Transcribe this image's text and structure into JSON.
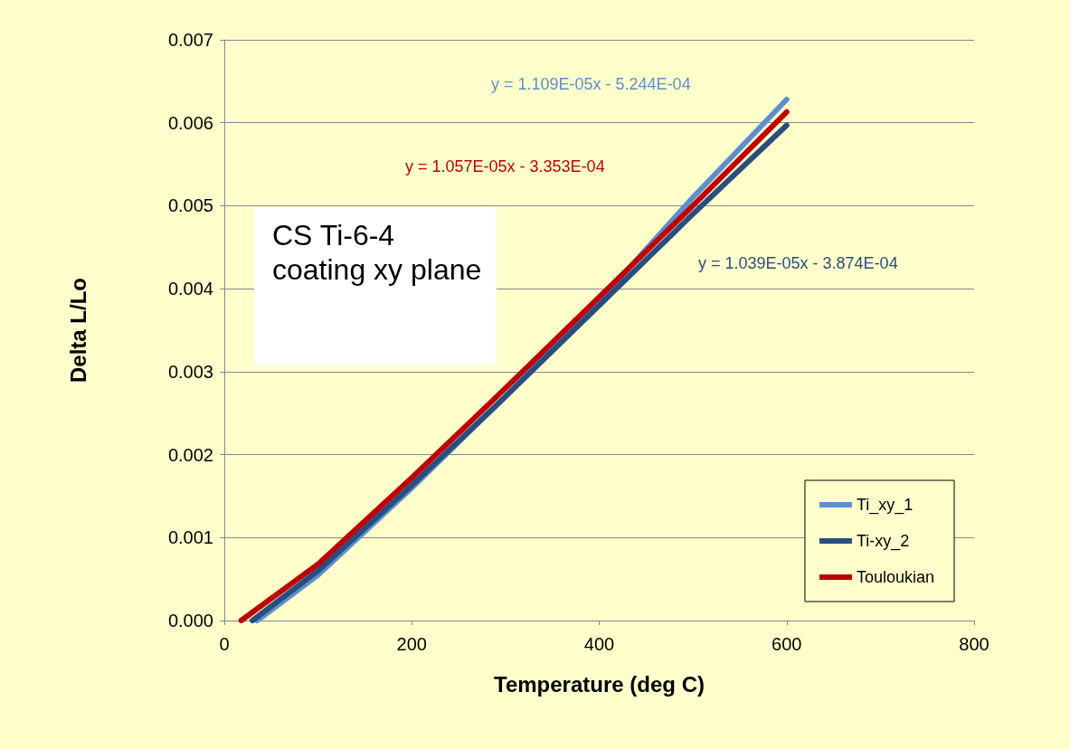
{
  "chart_data": {
    "type": "line",
    "xlabel": "Temperature (deg C)",
    "ylabel": "Delta L/Lo",
    "xlim": [
      0,
      800
    ],
    "xticks": [
      0,
      200,
      400,
      600,
      800
    ],
    "ylim": [
      0,
      0.007
    ],
    "yticks": [
      {
        "value": 0,
        "label": "0.000"
      },
      0.001,
      0.002,
      0.003,
      0.004,
      0.005,
      0.006,
      0.007
    ],
    "grid": "y",
    "legend": "bottom right",
    "marker": "none",
    "line_style": "solid",
    "series": [
      {
        "name": "Ti_xy_1",
        "color": "#5b8fcf",
        "x": [
          35,
          100,
          200,
          300,
          400,
          500,
          600
        ],
        "values": [
          0,
          0.00055,
          0.0016,
          0.0027,
          0.00385,
          0.0051,
          0.00628
        ]
      },
      {
        "name": "Ti-xy_2",
        "color": "#2a4d7f",
        "x": [
          30,
          100,
          200,
          300,
          400,
          500,
          600
        ],
        "values": [
          0,
          0.0006,
          0.00163,
          0.0027,
          0.0038,
          0.0049,
          0.00597
        ]
      },
      {
        "name": "Touloukian",
        "color": "#c00000",
        "x": [
          18,
          100,
          200,
          300,
          400,
          500,
          600
        ],
        "values": [
          0,
          0.00068,
          0.00172,
          0.0028,
          0.0039,
          0.005,
          0.00613
        ]
      }
    ],
    "annotations": [
      "y = 1.109E-05x - 5.244E-04",
      "y = 1.039E-05x - 3.874E-04",
      "y = 1.057E-05x - 3.353E-04",
      "CS Ti-6-4 coating xy plane"
    ]
  }
}
